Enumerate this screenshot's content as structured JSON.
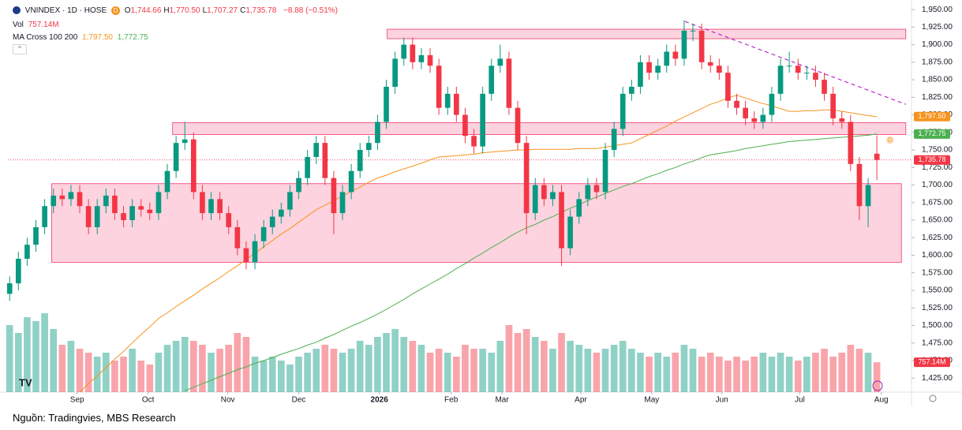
{
  "chart_data": {
    "type": "candlestick",
    "symbol": "VNINDEX · 1D · HOSE",
    "badge": "D",
    "ohlc": [
      {
        "key": "O",
        "text": "1,744.66"
      },
      {
        "key": "H",
        "text": "1,770.50"
      },
      {
        "key": "L",
        "text": "1,707.27"
      },
      {
        "key": "C",
        "text": "1,735.78"
      }
    ],
    "change": "−8.88 (−0.51%)",
    "volume_legend": {
      "name": "Vol",
      "text": "757.14M"
    },
    "ma_legend": {
      "name": "MA Cross 100 200",
      "fast": "1,797.50",
      "slow": "1,772.75"
    },
    "source": "Nguồn: Tradingvies, MBS Research",
    "up_color": "#089981",
    "down_color": "#f23645",
    "xlim": [
      -0.2,
      102.5
    ],
    "xticks": [
      {
        "value": 7.7,
        "label": "Sep"
      },
      {
        "value": 15.8,
        "label": "Oct"
      },
      {
        "value": 24.9,
        "label": "Nov"
      },
      {
        "value": 33,
        "label": "Dec"
      },
      {
        "value": 42.2,
        "label": "2026"
      },
      {
        "value": 50.4,
        "label": "Feb"
      },
      {
        "value": 56.2,
        "label": "Mar"
      },
      {
        "value": 65.2,
        "label": "Apr"
      },
      {
        "value": 73.3,
        "label": "May"
      },
      {
        "value": 81.3,
        "label": "Jun"
      },
      {
        "value": 90.2,
        "label": "Jul"
      },
      {
        "value": 99.5,
        "label": "Aug"
      }
    ],
    "ylim": [
      1405,
      1958
    ],
    "yticks": [
      {
        "value": 1425,
        "label": "1,425.00"
      },
      {
        "value": 1450,
        "label": "1,450.00"
      },
      {
        "value": 1475,
        "label": "1,475.00"
      },
      {
        "value": 1500,
        "label": "1,500.00"
      },
      {
        "value": 1525,
        "label": "1,525.00"
      },
      {
        "value": 1550,
        "label": "1,550.00"
      },
      {
        "value": 1575,
        "label": "1,575.00"
      },
      {
        "value": 1600,
        "label": "1,600.00"
      },
      {
        "value": 1625,
        "label": "1,625.00"
      },
      {
        "value": 1650,
        "label": "1,650.00"
      },
      {
        "value": 1675,
        "label": "1,675.00"
      },
      {
        "value": 1700,
        "label": "1,700.00"
      },
      {
        "value": 1725,
        "label": "1,725.00"
      },
      {
        "value": 1750,
        "label": "1,750.00"
      },
      {
        "value": 1775,
        "label": "1,775.00"
      },
      {
        "value": 1800,
        "label": "1,800.00"
      },
      {
        "value": 1825,
        "label": "1,825.00"
      },
      {
        "value": 1850,
        "label": "1,850.00"
      },
      {
        "value": 1875,
        "label": "1,875.00"
      },
      {
        "value": 1900,
        "label": "1,900.00"
      },
      {
        "value": 1925,
        "label": "1,925.00"
      },
      {
        "value": 1950,
        "label": "1,950.00"
      }
    ],
    "grid": false,
    "open": [
      1545,
      1560,
      1595,
      1615,
      1640,
      1670,
      1685,
      1680,
      1690,
      1670,
      1640,
      1670,
      1685,
      1660,
      1650,
      1670,
      1665,
      1660,
      1690,
      1720,
      1760,
      1765,
      1690,
      1660,
      1680,
      1660,
      1640,
      1610,
      1590,
      1620,
      1640,
      1655,
      1665,
      1690,
      1710,
      1740,
      1760,
      1710,
      1660,
      1690,
      1720,
      1750,
      1760,
      1790,
      1840,
      1880,
      1900,
      1875,
      1885,
      1870,
      1810,
      1830,
      1800,
      1770,
      1755,
      1830,
      1870,
      1880,
      1810,
      1760,
      1660,
      1700,
      1680,
      1690,
      1610,
      1655,
      1680,
      1700,
      1690,
      1750,
      1780,
      1830,
      1840,
      1875,
      1860,
      1870,
      1890,
      1880,
      1920,
      1920,
      1875,
      1870,
      1860,
      1820,
      1810,
      1795,
      1790,
      1800,
      1830,
      1870,
      1870,
      1860,
      1860,
      1850,
      1830,
      1795,
      1790,
      1730,
      1670,
      1744.66
    ],
    "high": [
      1570,
      1605,
      1625,
      1650,
      1680,
      1695,
      1695,
      1700,
      1700,
      1680,
      1680,
      1695,
      1695,
      1670,
      1680,
      1680,
      1675,
      1700,
      1730,
      1770,
      1790,
      1775,
      1700,
      1690,
      1690,
      1670,
      1650,
      1620,
      1630,
      1650,
      1665,
      1675,
      1700,
      1720,
      1750,
      1770,
      1770,
      1720,
      1700,
      1730,
      1760,
      1770,
      1800,
      1850,
      1890,
      1910,
      1910,
      1895,
      1895,
      1880,
      1840,
      1840,
      1810,
      1780,
      1840,
      1880,
      1900,
      1890,
      1820,
      1770,
      1710,
      1710,
      1700,
      1700,
      1665,
      1690,
      1710,
      1710,
      1760,
      1790,
      1840,
      1850,
      1885,
      1885,
      1880,
      1900,
      1900,
      1935,
      1930,
      1930,
      1885,
      1880,
      1870,
      1830,
      1820,
      1805,
      1810,
      1840,
      1880,
      1890,
      1880,
      1870,
      1870,
      1860,
      1840,
      1805,
      1800,
      1740,
      1710,
      1770.5
    ],
    "low": [
      1535,
      1550,
      1585,
      1605,
      1630,
      1660,
      1670,
      1670,
      1660,
      1630,
      1630,
      1660,
      1650,
      1640,
      1640,
      1655,
      1650,
      1650,
      1680,
      1710,
      1750,
      1680,
      1650,
      1650,
      1650,
      1630,
      1600,
      1580,
      1580,
      1610,
      1630,
      1645,
      1655,
      1680,
      1700,
      1730,
      1700,
      1630,
      1650,
      1680,
      1710,
      1740,
      1750,
      1780,
      1830,
      1870,
      1865,
      1865,
      1860,
      1800,
      1800,
      1790,
      1760,
      1745,
      1745,
      1820,
      1860,
      1800,
      1750,
      1630,
      1650,
      1670,
      1670,
      1585,
      1600,
      1645,
      1670,
      1680,
      1680,
      1740,
      1770,
      1820,
      1830,
      1850,
      1850,
      1860,
      1870,
      1870,
      1905,
      1865,
      1860,
      1850,
      1810,
      1800,
      1785,
      1780,
      1780,
      1790,
      1820,
      1860,
      1850,
      1850,
      1840,
      1820,
      1785,
      1780,
      1720,
      1650,
      1640,
      1707.27
    ],
    "close": [
      1560,
      1595,
      1615,
      1640,
      1670,
      1685,
      1680,
      1690,
      1670,
      1640,
      1670,
      1685,
      1660,
      1650,
      1670,
      1665,
      1660,
      1690,
      1720,
      1760,
      1765,
      1690,
      1660,
      1680,
      1660,
      1640,
      1610,
      1590,
      1620,
      1640,
      1655,
      1665,
      1690,
      1710,
      1740,
      1760,
      1710,
      1660,
      1690,
      1720,
      1750,
      1760,
      1790,
      1840,
      1880,
      1900,
      1875,
      1885,
      1870,
      1810,
      1830,
      1800,
      1770,
      1755,
      1830,
      1870,
      1880,
      1810,
      1760,
      1660,
      1700,
      1680,
      1690,
      1610,
      1655,
      1680,
      1700,
      1690,
      1750,
      1780,
      1830,
      1840,
      1875,
      1860,
      1870,
      1890,
      1880,
      1920,
      1920,
      1875,
      1870,
      1860,
      1820,
      1810,
      1795,
      1790,
      1800,
      1830,
      1870,
      1870,
      1860,
      1860,
      1850,
      1830,
      1795,
      1790,
      1730,
      1670,
      1700,
      1735.78
    ],
    "volume": [
      1700,
      1500,
      1900,
      1800,
      2000,
      1600,
      1200,
      1300,
      1100,
      1000,
      900,
      1000,
      800,
      900,
      1100,
      800,
      700,
      1000,
      1200,
      1300,
      1400,
      1300,
      1200,
      1000,
      1100,
      1200,
      1500,
      1400,
      900,
      800,
      900,
      800,
      700,
      900,
      1000,
      1100,
      1200,
      1100,
      1000,
      1100,
      1300,
      1200,
      1400,
      1500,
      1600,
      1400,
      1300,
      1200,
      1000,
      1100,
      1000,
      900,
      1200,
      1100,
      1100,
      1000,
      1300,
      1700,
      1500,
      1600,
      1400,
      1300,
      1100,
      1500,
      1300,
      1200,
      1100,
      1000,
      1100,
      1200,
      1300,
      1100,
      1000,
      900,
      1000,
      900,
      1000,
      1200,
      1100,
      900,
      1000,
      900,
      800,
      900,
      800,
      900,
      1000,
      900,
      1000,
      900,
      800,
      900,
      1000,
      1100,
      900,
      1000,
      1200,
      1100,
      1000,
      757.14
    ],
    "series": [
      {
        "name": "MA 100",
        "color": "#f7931e",
        "values": [
          null,
          null,
          null,
          null,
          null,
          null,
          null,
          null,
          1405,
          1417,
          1428,
          1440,
          1452,
          1463,
          1475,
          1487,
          1498,
          1510,
          1518,
          1527,
          1535,
          1543,
          1552,
          1560,
          1568,
          1577,
          1585,
          1594,
          1603,
          1612,
          1621,
          1630,
          1638,
          1647,
          1656,
          1665,
          1671,
          1678,
          1684,
          1691,
          1697,
          1704,
          1710,
          1714,
          1719,
          1723,
          1727,
          1731,
          1736,
          1740,
          1741,
          1742,
          1743,
          1744,
          1746,
          1747,
          1748,
          1749,
          1750,
          1750,
          1751,
          1751,
          1751,
          1751,
          1751,
          1752,
          1752,
          1752,
          1754,
          1756,
          1758,
          1760,
          1766,
          1772,
          1778,
          1784,
          1791,
          1797,
          1803,
          1809,
          1815,
          1819,
          1824,
          1828,
          1824,
          1820,
          1816,
          1813,
          1809,
          1805,
          1805,
          1806,
          1806,
          1807,
          1807,
          1805,
          1803,
          1801,
          1799,
          1797.5
        ]
      },
      {
        "name": "MA 200",
        "color": "#4caf50",
        "values": [
          null,
          null,
          null,
          null,
          null,
          null,
          null,
          null,
          null,
          null,
          null,
          null,
          null,
          null,
          null,
          null,
          null,
          null,
          null,
          null,
          1407,
          1412,
          1417,
          1422,
          1427,
          1432,
          1437,
          1441,
          1446,
          1450,
          1454,
          1459,
          1463,
          1467,
          1472,
          1476,
          1482,
          1487,
          1493,
          1499,
          1504,
          1510,
          1516,
          1523,
          1530,
          1537,
          1545,
          1552,
          1559,
          1566,
          1573,
          1581,
          1588,
          1596,
          1603,
          1611,
          1618,
          1626,
          1633,
          1639,
          1644,
          1650,
          1655,
          1661,
          1667,
          1672,
          1678,
          1683,
          1688,
          1693,
          1698,
          1702,
          1707,
          1712,
          1716,
          1721,
          1725,
          1730,
          1734,
          1739,
          1743,
          1745,
          1747,
          1749,
          1752,
          1754,
          1756,
          1758,
          1760,
          1762,
          1763,
          1764,
          1765,
          1766,
          1767,
          1768,
          1769,
          1770,
          1771,
          1772.75
        ]
      }
    ],
    "price_tags": [
      {
        "value": 1797.5,
        "label": "1,797.50",
        "color": "#f7931e"
      },
      {
        "value": 1772.75,
        "label": "1,772.75",
        "color": "#4caf50"
      },
      {
        "value": 1735.78,
        "label": "1,735.78",
        "color": "#f23645"
      }
    ],
    "volume_tag": {
      "value": 757.14,
      "label": "757.14M",
      "color": "#f23645"
    },
    "zones": [
      {
        "x": [
          43.1,
          102.3
        ],
        "y": [
          1908.5,
          1922
        ]
      },
      {
        "x": [
          18.6,
          102.3
        ],
        "y": [
          1772,
          1789
        ]
      },
      {
        "x": [
          4.8,
          101.8
        ],
        "y": [
          1590,
          1702
        ]
      }
    ],
    "trendline": {
      "x": [
        77.1,
        102.3
      ],
      "y": [
        1933,
        1815
      ],
      "color": "#c026d3"
    }
  }
}
